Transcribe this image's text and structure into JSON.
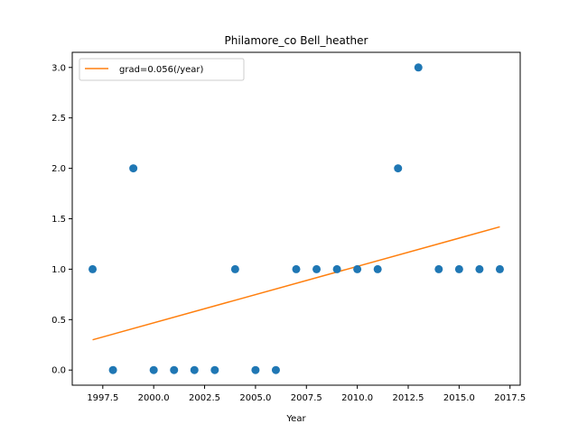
{
  "chart_data": {
    "type": "scatter",
    "title": "Philamore_co Bell_heather",
    "xlabel": "Year",
    "ylabel": "",
    "xlim": [
      1996.0,
      2018.0
    ],
    "ylim": [
      -0.15,
      3.15
    ],
    "xticks": [
      1997.5,
      2000.0,
      2002.5,
      2005.0,
      2007.5,
      2010.0,
      2012.5,
      2015.0,
      2017.5
    ],
    "xtick_labels": [
      "1997.5",
      "2000.0",
      "2002.5",
      "2005.0",
      "2007.5",
      "2010.0",
      "2012.5",
      "2015.0",
      "2017.5"
    ],
    "yticks": [
      0.0,
      0.5,
      1.0,
      1.5,
      2.0,
      2.5,
      3.0
    ],
    "ytick_labels": [
      "0.0",
      "0.5",
      "1.0",
      "1.5",
      "2.0",
      "2.5",
      "3.0"
    ],
    "grid": false,
    "legend_position": "top-left",
    "series": [
      {
        "kind": "scatter",
        "color": "#1f77b4",
        "x": [
          1997,
          1998,
          1999,
          2000,
          2001,
          2002,
          2003,
          2004,
          2005,
          2006,
          2007,
          2008,
          2009,
          2010,
          2011,
          2012,
          2013,
          2014,
          2015,
          2016,
          2017
        ],
        "y": [
          1,
          0,
          2,
          0,
          0,
          0,
          0,
          1,
          0,
          0,
          1,
          1,
          1,
          1,
          1,
          2,
          3,
          1,
          1,
          1,
          1
        ]
      },
      {
        "kind": "line",
        "name": "grad=0.056(/year)",
        "color": "#ff7f0e",
        "x": [
          1997,
          2017
        ],
        "y": [
          0.3,
          1.42
        ]
      }
    ]
  }
}
